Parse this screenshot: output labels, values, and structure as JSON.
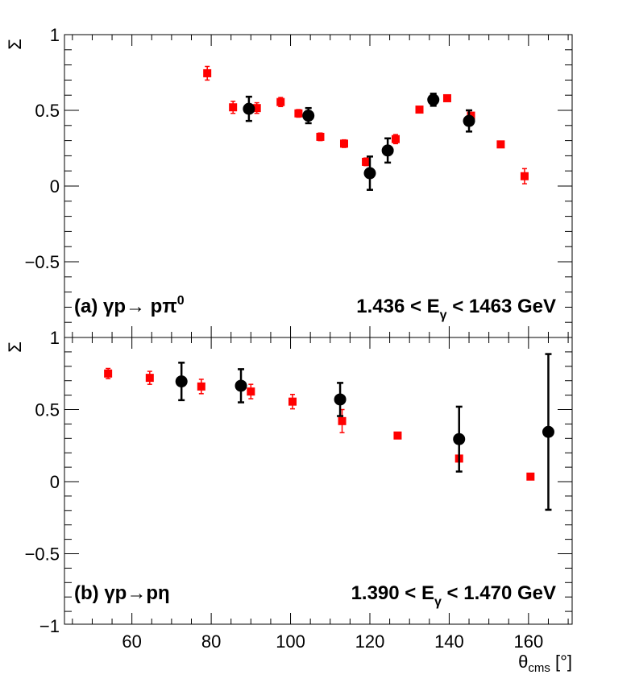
{
  "chart_data": [
    {
      "type": "scatter",
      "panel": "top",
      "ylabel": "Σ",
      "xlim": [
        43,
        171
      ],
      "ylim": [
        -1,
        1
      ],
      "y_ticks": [
        -0.5,
        0,
        0.5,
        1
      ],
      "y_tick_labels": [
        "−0.5",
        "0",
        "0.5",
        "1"
      ],
      "annotation_left": "(a)  γp→ pπ",
      "annotation_left_sup": "0",
      "annotation_right": "1.436 < E",
      "annotation_right_sub": "γ",
      "annotation_right_tail": " < 1463 GeV",
      "series": [
        {
          "name": "red-squares",
          "color": "#ff0000",
          "marker": "square",
          "points": [
            {
              "x": 79,
              "y": 0.745,
              "err": 0.045
            },
            {
              "x": 85.5,
              "y": 0.52,
              "err": 0.04
            },
            {
              "x": 91.5,
              "y": 0.515,
              "err": 0.035
            },
            {
              "x": 97.5,
              "y": 0.555,
              "err": 0.03
            },
            {
              "x": 102,
              "y": 0.48,
              "err": 0.025
            },
            {
              "x": 107.5,
              "y": 0.325,
              "err": 0.025
            },
            {
              "x": 113.5,
              "y": 0.28,
              "err": 0.025
            },
            {
              "x": 119,
              "y": 0.16,
              "err": 0.025
            },
            {
              "x": 126.5,
              "y": 0.31,
              "err": 0.03
            },
            {
              "x": 132.5,
              "y": 0.505,
              "err": 0.015
            },
            {
              "x": 139.5,
              "y": 0.58,
              "err": 0.015
            },
            {
              "x": 145.5,
              "y": 0.465,
              "err": 0.02
            },
            {
              "x": 153,
              "y": 0.275,
              "err": 0.015
            },
            {
              "x": 159,
              "y": 0.065,
              "err": 0.05
            }
          ]
        },
        {
          "name": "black-circles",
          "color": "#000000",
          "marker": "circle",
          "points": [
            {
              "x": 89.5,
              "y": 0.51,
              "err": 0.08
            },
            {
              "x": 104.5,
              "y": 0.465,
              "err": 0.05
            },
            {
              "x": 120,
              "y": 0.085,
              "err": 0.11
            },
            {
              "x": 124.5,
              "y": 0.235,
              "err": 0.08
            },
            {
              "x": 136,
              "y": 0.57,
              "err": 0.04
            },
            {
              "x": 145,
              "y": 0.43,
              "err": 0.07
            }
          ]
        }
      ]
    },
    {
      "type": "scatter",
      "panel": "bottom",
      "ylabel": "Σ",
      "xlabel": "θ",
      "xlabel_sub": "cms",
      "xlabel_tail": " [°]",
      "xlim": [
        43,
        171
      ],
      "ylim": [
        -1,
        1
      ],
      "x_ticks": [
        60,
        80,
        100,
        120,
        140,
        160
      ],
      "x_tick_labels": [
        "60",
        "80",
        "100",
        "120",
        "140",
        "160"
      ],
      "y_ticks": [
        -1,
        -0.5,
        0,
        0.5,
        1
      ],
      "y_tick_labels": [
        "−1",
        "−0.5",
        "0",
        "0.5",
        "1"
      ],
      "annotation_left": "(b)  γp→pη",
      "annotation_right": "1.390 < E",
      "annotation_right_sub": "γ",
      "annotation_right_tail": " < 1.470 GeV",
      "series": [
        {
          "name": "red-squares",
          "color": "#ff0000",
          "marker": "square",
          "points": [
            {
              "x": 54,
              "y": 0.75,
              "err": 0.035
            },
            {
              "x": 64.5,
              "y": 0.72,
              "err": 0.045
            },
            {
              "x": 77.5,
              "y": 0.66,
              "err": 0.05
            },
            {
              "x": 90,
              "y": 0.625,
              "err": 0.05
            },
            {
              "x": 100.5,
              "y": 0.555,
              "err": 0.05
            },
            {
              "x": 113,
              "y": 0.42,
              "err": 0.08
            },
            {
              "x": 127,
              "y": 0.32,
              "err": 0.015
            },
            {
              "x": 142.5,
              "y": 0.16,
              "err": 0.02
            },
            {
              "x": 160.5,
              "y": 0.035,
              "err": 0.015
            }
          ]
        },
        {
          "name": "black-circles",
          "color": "#000000",
          "marker": "circle",
          "points": [
            {
              "x": 72.5,
              "y": 0.695,
              "err": 0.13
            },
            {
              "x": 87.5,
              "y": 0.665,
              "err": 0.115
            },
            {
              "x": 112.5,
              "y": 0.57,
              "err": 0.115
            },
            {
              "x": 142.5,
              "y": 0.295,
              "err": 0.225
            },
            {
              "x": 165,
              "y": 0.345,
              "err": 0.54
            }
          ]
        }
      ]
    }
  ]
}
